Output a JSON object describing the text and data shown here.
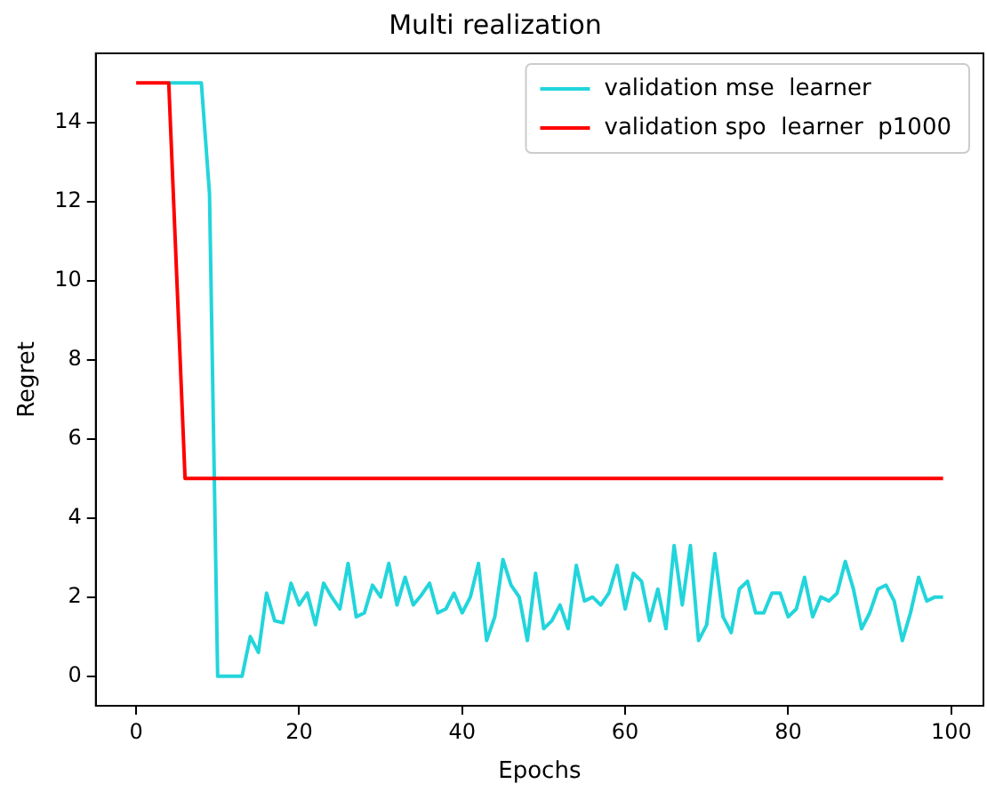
{
  "chart_data": {
    "type": "line",
    "title": "Multi realization",
    "xlabel": "Epochs",
    "ylabel": "Regret",
    "x": [
      0,
      1,
      2,
      3,
      4,
      5,
      6,
      7,
      8,
      9,
      10,
      11,
      12,
      13,
      14,
      15,
      16,
      17,
      18,
      19,
      20,
      21,
      22,
      23,
      24,
      25,
      26,
      27,
      28,
      29,
      30,
      31,
      32,
      33,
      34,
      35,
      36,
      37,
      38,
      39,
      40,
      41,
      42,
      43,
      44,
      45,
      46,
      47,
      48,
      49,
      50,
      51,
      52,
      53,
      54,
      55,
      56,
      57,
      58,
      59,
      60,
      61,
      62,
      63,
      64,
      65,
      66,
      67,
      68,
      69,
      70,
      71,
      72,
      73,
      74,
      75,
      76,
      77,
      78,
      79,
      80,
      81,
      82,
      83,
      84,
      85,
      86,
      87,
      88,
      89,
      90,
      91,
      92,
      93,
      94,
      95,
      96,
      97,
      98,
      99
    ],
    "series": [
      {
        "name": "validation mse  learner",
        "color": "#22d5db",
        "values": [
          null,
          null,
          null,
          null,
          15,
          15,
          15,
          15,
          15,
          12.2,
          0,
          0,
          0,
          0,
          1,
          0.6,
          2.1,
          1.4,
          1.35,
          2.35,
          1.8,
          2.1,
          1.3,
          2.35,
          2.0,
          1.7,
          2.85,
          1.5,
          1.6,
          2.3,
          2.0,
          2.85,
          1.8,
          2.5,
          1.8,
          2.05,
          2.35,
          1.6,
          1.7,
          2.1,
          1.6,
          2.0,
          2.85,
          0.9,
          1.5,
          2.95,
          2.3,
          2.0,
          0.9,
          2.6,
          1.2,
          1.4,
          1.8,
          1.2,
          2.8,
          1.9,
          2.0,
          1.8,
          2.1,
          2.8,
          1.7,
          2.6,
          2.4,
          1.4,
          2.2,
          1.2,
          3.3,
          1.8,
          3.3,
          0.9,
          1.3,
          3.1,
          1.5,
          1.1,
          2.2,
          2.4,
          1.6,
          1.6,
          2.1,
          2.1,
          1.5,
          1.7,
          2.5,
          1.5,
          2.0,
          1.9,
          2.1,
          2.9,
          2.2,
          1.2,
          1.6,
          2.2,
          2.3,
          1.9,
          0.9,
          1.6,
          2.5,
          1.9,
          2.0,
          2.0
        ]
      },
      {
        "name": "validation spo  learner  p1000",
        "color": "#ff0000",
        "values": [
          15,
          15,
          15,
          15,
          15,
          10,
          5,
          5,
          5,
          5,
          5,
          5,
          5,
          5,
          5,
          5,
          5,
          5,
          5,
          5,
          5,
          5,
          5,
          5,
          5,
          5,
          5,
          5,
          5,
          5,
          5,
          5,
          5,
          5,
          5,
          5,
          5,
          5,
          5,
          5,
          5,
          5,
          5,
          5,
          5,
          5,
          5,
          5,
          5,
          5,
          5,
          5,
          5,
          5,
          5,
          5,
          5,
          5,
          5,
          5,
          5,
          5,
          5,
          5,
          5,
          5,
          5,
          5,
          5,
          5,
          5,
          5,
          5,
          5,
          5,
          5,
          5,
          5,
          5,
          5,
          5,
          5,
          5,
          5,
          5,
          5,
          5,
          5,
          5,
          5,
          5,
          5,
          5,
          5,
          5,
          5,
          5,
          5,
          5,
          5
        ]
      }
    ],
    "xlim": [
      -4.95,
      103.95
    ],
    "xticks": [
      0,
      20,
      40,
      60,
      80,
      100
    ],
    "ylim": [
      -0.75,
      15.75
    ],
    "yticks": [
      0,
      2,
      4,
      6,
      8,
      10,
      12,
      14
    ],
    "grid": false,
    "legend": "top right"
  }
}
